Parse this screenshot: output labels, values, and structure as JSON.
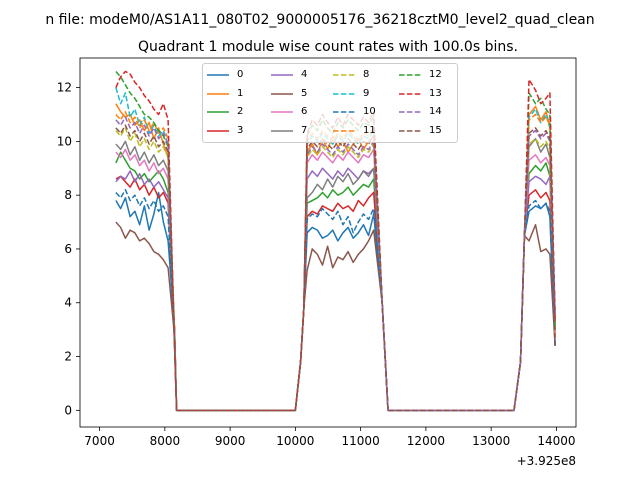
{
  "suptitle": "n file: modeM0/AS1A11_080T02_9000005176_36218cztM0_level2_quad_clean",
  "chart_data": {
    "type": "line",
    "title": "Quadrant 1 module wise count rates with 100.0s bins.",
    "xlabel": "",
    "ylabel": "",
    "offset_text": "+3.925e8",
    "xlim": [
      6700,
      14300
    ],
    "ylim": [
      -0.62,
      13.1
    ],
    "xticks": [
      7000,
      8000,
      9000,
      10000,
      11000,
      12000,
      13000,
      14000
    ],
    "yticks": [
      0,
      2,
      4,
      6,
      8,
      10,
      12
    ],
    "legend_position": "upper-center",
    "legend_columns": 4,
    "series": [
      {
        "name": "0",
        "color": "#1f77b4",
        "dash": false,
        "a": [
          7.8,
          7.5,
          7.9,
          7.2,
          7.4,
          6.9,
          7.6,
          6.7,
          7.3,
          8.1,
          7.0,
          6.3
        ],
        "b": [
          6.6,
          6.8,
          6.7,
          6.4,
          6.5,
          6.7,
          6.3,
          6.6,
          6.8,
          6.4,
          6.6,
          6.9,
          6.5,
          7.3
        ],
        "c": [
          7.4,
          7.6,
          7.5,
          7.7,
          7.2
        ]
      },
      {
        "name": "1",
        "color": "#ff7f0e",
        "dash": false,
        "a": [
          11.4,
          11.1,
          10.9,
          11.0,
          10.6,
          10.8,
          10.4,
          10.7,
          10.1,
          10.5,
          9.9,
          9.4
        ],
        "b": [
          9.6,
          9.9,
          9.5,
          10.1,
          9.7,
          10.2,
          9.8,
          10.0,
          9.6,
          9.9,
          10.1,
          9.7,
          10.0,
          10.2
        ],
        "c": [
          11.0,
          11.3,
          10.8,
          11.1,
          10.6
        ]
      },
      {
        "name": "2",
        "color": "#2ca02c",
        "dash": false,
        "a": [
          9.2,
          9.6,
          9.3,
          9.0,
          8.9,
          8.6,
          8.8,
          8.5,
          8.7,
          8.9,
          8.6,
          8.1
        ],
        "b": [
          7.7,
          7.8,
          7.9,
          8.1,
          7.9,
          8.2,
          8.0,
          8.1,
          8.3,
          8.0,
          8.2,
          8.4,
          8.3,
          8.6
        ],
        "c": [
          8.8,
          9.1,
          8.9,
          9.2,
          8.7
        ]
      },
      {
        "name": "3",
        "color": "#d62728",
        "dash": false,
        "a": [
          8.6,
          8.7,
          8.5,
          8.3,
          8.6,
          8.2,
          8.4,
          8.0,
          8.3,
          7.9,
          8.1,
          7.7
        ],
        "b": [
          7.2,
          7.4,
          7.3,
          7.6,
          7.5,
          7.4,
          7.7,
          7.5,
          7.6,
          7.4,
          7.8,
          7.6,
          7.9,
          8.1
        ],
        "c": [
          8.0,
          8.2,
          7.9,
          8.1,
          7.8
        ]
      },
      {
        "name": "4",
        "color": "#9467bd",
        "dash": false,
        "a": [
          8.5,
          8.7,
          8.6,
          8.9,
          8.5,
          8.8,
          8.4,
          8.6,
          8.3,
          8.5,
          8.2,
          7.9
        ],
        "b": [
          8.6,
          8.9,
          8.7,
          9.0,
          8.8,
          8.6,
          8.9,
          8.7,
          9.0,
          8.8,
          8.6,
          8.9,
          8.8,
          9.0
        ],
        "c": [
          8.5,
          8.7,
          8.6,
          8.4,
          8.7
        ]
      },
      {
        "name": "5",
        "color": "#8c564b",
        "dash": false,
        "a": [
          7.0,
          6.8,
          6.4,
          6.7,
          6.6,
          6.3,
          6.4,
          6.2,
          5.9,
          5.8,
          5.6,
          5.3
        ],
        "b": [
          5.2,
          6.0,
          5.8,
          5.4,
          6.1,
          5.3,
          5.7,
          5.6,
          5.9,
          5.5,
          5.8,
          6.0,
          6.3,
          6.7
        ],
        "c": [
          6.3,
          6.9,
          5.9,
          6.0,
          5.8
        ]
      },
      {
        "name": "6",
        "color": "#e377c2",
        "dash": false,
        "a": [
          9.6,
          9.4,
          9.7,
          9.3,
          9.5,
          9.1,
          9.3,
          8.9,
          9.2,
          8.8,
          9.0,
          8.6
        ],
        "b": [
          9.2,
          9.5,
          9.3,
          9.6,
          9.4,
          9.2,
          9.5,
          9.3,
          9.6,
          9.4,
          9.2,
          9.5,
          9.4,
          9.7
        ],
        "c": [
          9.3,
          9.5,
          9.2,
          9.4,
          9.1
        ]
      },
      {
        "name": "7",
        "color": "#7f7f7f",
        "dash": false,
        "a": [
          9.9,
          9.7,
          10.0,
          9.5,
          9.8,
          9.3,
          9.6,
          9.2,
          9.5,
          9.1,
          9.3,
          8.9
        ],
        "b": [
          7.9,
          8.1,
          8.4,
          8.2,
          8.6,
          8.3,
          8.7,
          8.5,
          8.8,
          8.4,
          8.6,
          8.9,
          8.7,
          9.0
        ],
        "c": [
          9.8,
          10.1,
          9.6,
          9.9,
          9.4
        ]
      },
      {
        "name": "8",
        "color": "#bcbd22",
        "dash": true,
        "a": [
          10.4,
          10.2,
          10.5,
          10.0,
          10.3,
          9.8,
          10.1,
          9.7,
          10.0,
          9.6,
          9.8,
          9.4
        ],
        "b": [
          9.4,
          9.7,
          9.5,
          9.8,
          9.6,
          9.4,
          9.7,
          9.5,
          9.8,
          9.6,
          9.4,
          9.7,
          9.6,
          9.9
        ],
        "c": [
          9.9,
          10.1,
          9.8,
          10.0,
          9.7
        ]
      },
      {
        "name": "9",
        "color": "#17becf",
        "dash": true,
        "a": [
          12.0,
          11.4,
          11.8,
          10.9,
          11.2,
          10.6,
          10.9,
          10.3,
          10.6,
          10.2,
          10.4,
          9.9
        ],
        "b": [
          9.9,
          10.2,
          10.0,
          10.3,
          10.1,
          9.9,
          10.2,
          10.0,
          10.3,
          10.1,
          9.9,
          10.2,
          10.1,
          10.4
        ],
        "c": [
          10.9,
          11.2,
          10.7,
          11.0,
          10.5
        ]
      },
      {
        "name": "10",
        "color": "#1f77b4",
        "dash": true,
        "a": [
          8.1,
          7.9,
          8.2,
          7.8,
          8.0,
          7.6,
          7.9,
          7.5,
          7.8,
          7.4,
          7.6,
          7.2
        ],
        "b": [
          7.1,
          7.3,
          7.2,
          7.5,
          7.3,
          7.1,
          7.4,
          6.9,
          7.2,
          6.6,
          7.0,
          7.3,
          7.1,
          7.5
        ],
        "c": [
          7.6,
          7.8,
          7.5,
          7.7,
          7.4
        ]
      },
      {
        "name": "11",
        "color": "#ff7f0e",
        "dash": true,
        "a": [
          11.0,
          10.8,
          11.1,
          10.7,
          10.9,
          10.5,
          10.8,
          10.4,
          10.7,
          10.3,
          10.5,
          10.1
        ],
        "b": [
          10.0,
          10.3,
          10.1,
          10.4,
          10.2,
          10.0,
          10.3,
          10.1,
          10.4,
          10.2,
          10.0,
          10.3,
          10.2,
          10.5
        ],
        "c": [
          10.8,
          11.0,
          10.7,
          10.9,
          10.6
        ]
      },
      {
        "name": "12",
        "color": "#2ca02c",
        "dash": true,
        "a": [
          12.6,
          12.4,
          12.1,
          11.8,
          11.6,
          11.3,
          11.0,
          10.9,
          10.7,
          10.4,
          10.2,
          9.8
        ],
        "b": [
          10.2,
          10.6,
          10.4,
          10.8,
          10.5,
          10.3,
          10.7,
          10.5,
          10.8,
          10.6,
          10.4,
          10.7,
          10.6,
          10.9
        ],
        "c": [
          11.8,
          11.4,
          11.6,
          11.2,
          11.0
        ]
      },
      {
        "name": "13",
        "color": "#d62728",
        "dash": true,
        "a": [
          12.0,
          12.4,
          12.6,
          12.5,
          12.2,
          12.0,
          11.7,
          11.5,
          11.2,
          11.0,
          11.4,
          10.8
        ],
        "b": [
          10.3,
          10.8,
          10.6,
          11.0,
          10.7,
          10.5,
          10.9,
          10.6,
          11.0,
          10.8,
          10.6,
          10.9,
          10.7,
          11.1
        ],
        "c": [
          12.3,
          11.9,
          11.4,
          11.6,
          11.8
        ]
      },
      {
        "name": "14",
        "color": "#9467bd",
        "dash": true,
        "a": [
          10.8,
          10.6,
          10.9,
          10.5,
          10.7,
          10.3,
          10.6,
          10.2,
          10.5,
          10.1,
          10.3,
          9.9
        ],
        "b": [
          9.5,
          9.8,
          9.6,
          9.9,
          9.7,
          9.5,
          9.8,
          9.6,
          9.9,
          9.7,
          9.5,
          9.8,
          9.7,
          10.0
        ],
        "c": [
          10.2,
          10.4,
          10.1,
          10.3,
          10.0
        ]
      },
      {
        "name": "15",
        "color": "#8c564b",
        "dash": true,
        "a": [
          10.5,
          10.3,
          10.6,
          10.2,
          10.4,
          10.0,
          10.3,
          9.9,
          10.2,
          9.8,
          10.0,
          9.6
        ],
        "b": [
          9.7,
          10.0,
          9.8,
          10.1,
          9.9,
          9.7,
          10.0,
          9.8,
          10.1,
          9.9,
          9.7,
          10.0,
          9.9,
          10.2
        ],
        "c": [
          10.3,
          10.5,
          10.2,
          10.4,
          10.1
        ]
      }
    ]
  }
}
